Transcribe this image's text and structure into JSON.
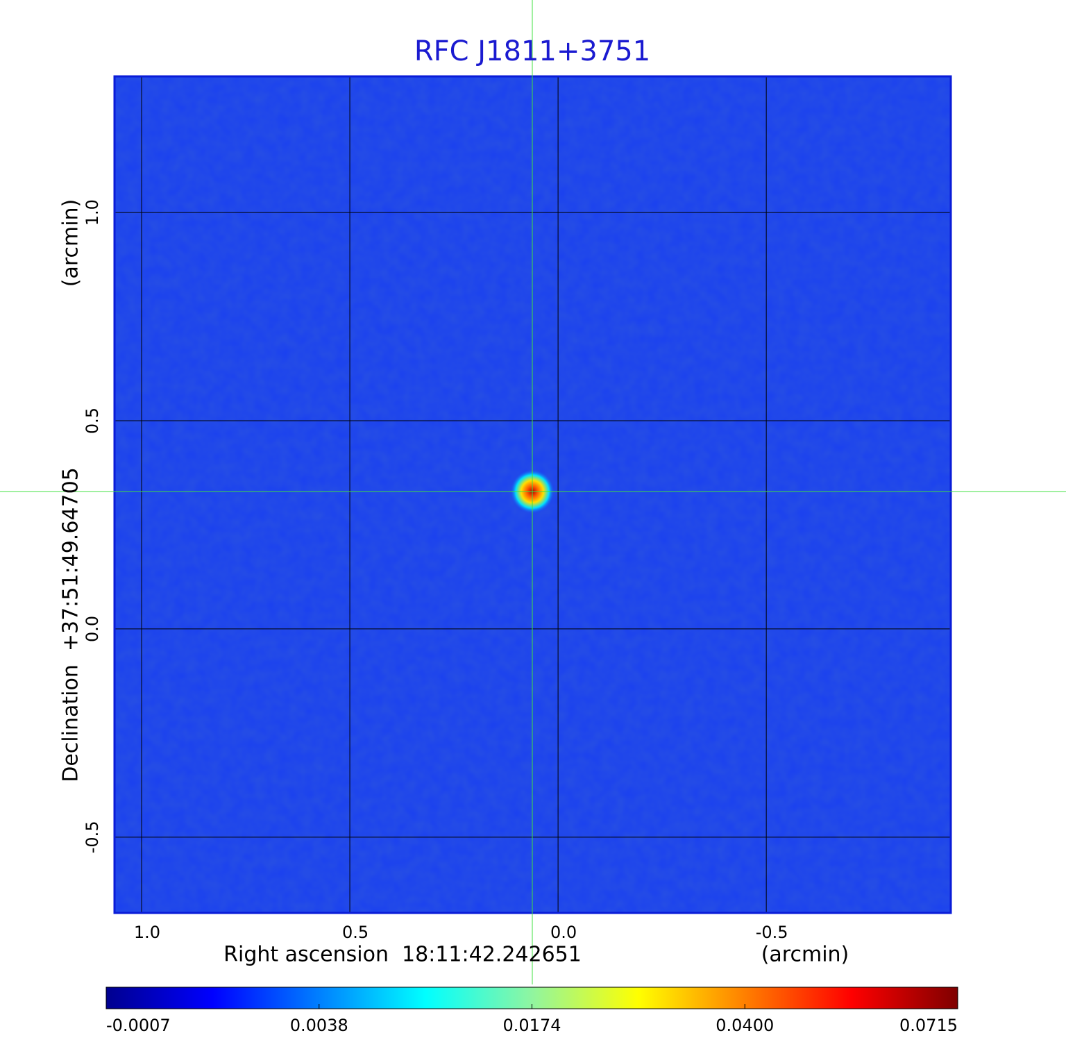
{
  "chart_data": {
    "type": "image",
    "title": "RFC J1811+3751",
    "x_label": "Right ascension  18:11:42.242651",
    "x_unit": "(arcmin)",
    "y_label": "Declination  +37:51:49.64705",
    "y_unit": "(arcmin)",
    "xlim": [
      1.065,
      -0.943
    ],
    "ylim": [
      -0.682,
      1.327
    ],
    "xticks": [
      {
        "value": 1,
        "label": "1.0"
      },
      {
        "value": 0.5,
        "label": "0.5"
      },
      {
        "value": 0,
        "label": "0.0"
      },
      {
        "value": -0.5,
        "label": "-0.5"
      }
    ],
    "yticks": [
      {
        "value": -0.5,
        "label": "-0.5"
      },
      {
        "value": 0,
        "label": "0.0"
      },
      {
        "value": 0.5,
        "label": "0.5"
      },
      {
        "value": 1,
        "label": "1.0"
      }
    ],
    "grid": true,
    "colorbar_ticks": [
      -0.0007,
      0.0038,
      0.0174,
      {
        "value": 0.04,
        "label": "0.0400"
      },
      0.0715
    ]
  }
}
